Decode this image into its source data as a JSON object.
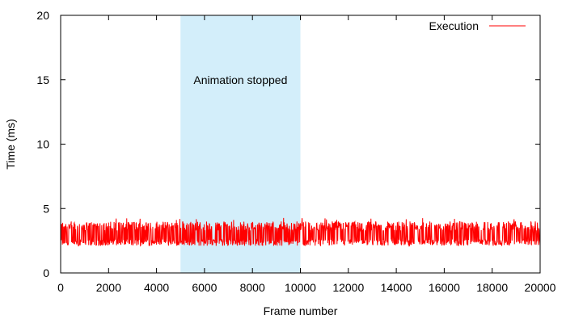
{
  "chart_data": {
    "type": "line",
    "title": "",
    "xlabel": "Frame number",
    "ylabel": "Time (ms)",
    "xlim": [
      0,
      20000
    ],
    "ylim": [
      0,
      20
    ],
    "x_ticks": [
      0,
      2000,
      4000,
      6000,
      8000,
      10000,
      12000,
      14000,
      16000,
      18000,
      20000
    ],
    "y_ticks": [
      0,
      5,
      10,
      15,
      20
    ],
    "grid": false,
    "legend_position": "top-right",
    "series": [
      {
        "name": "Execution",
        "color": "#ff0000",
        "x_range": [
          0,
          20000
        ],
        "typical_min": 2.1,
        "typical_max": 4.0,
        "peak": 4.3
      }
    ],
    "annotations": [
      {
        "type": "shaded-region",
        "x_range": [
          5000,
          10000
        ],
        "color": "#d3eefa",
        "label": "Animation stopped"
      }
    ]
  }
}
